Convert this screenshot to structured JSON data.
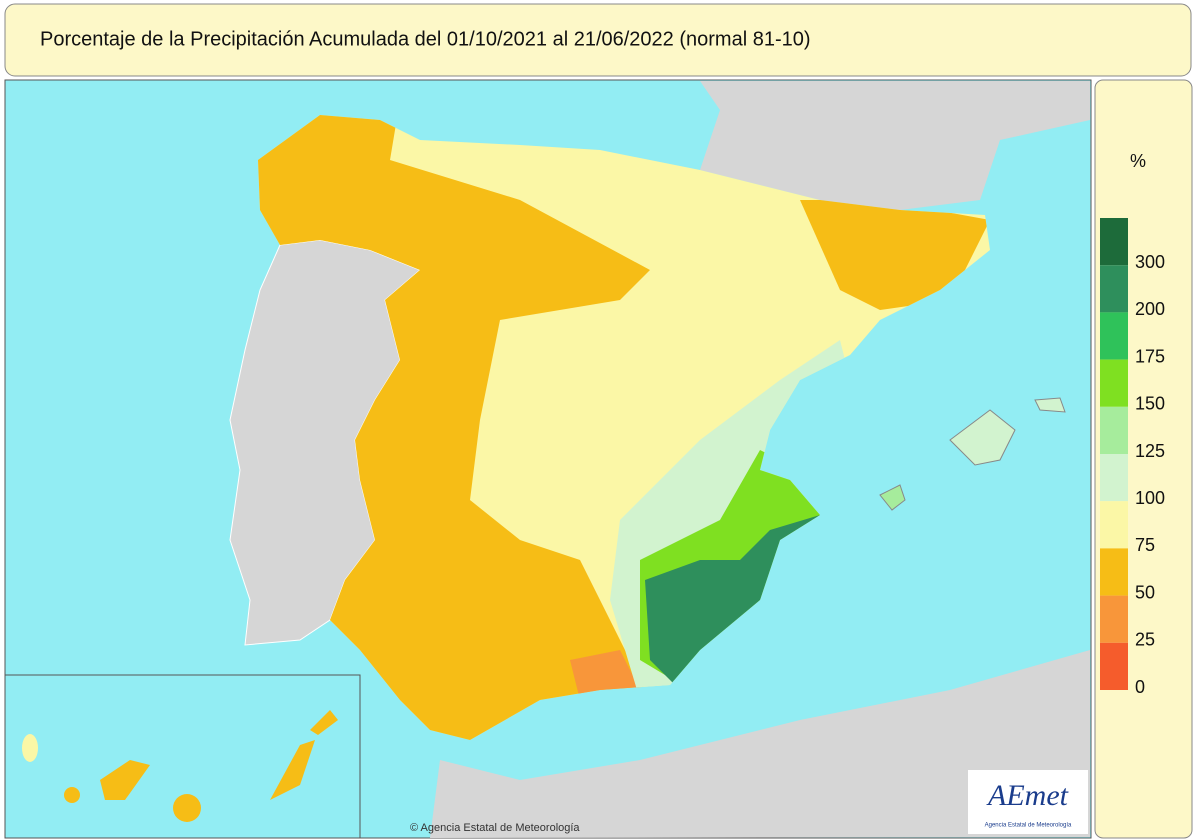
{
  "header": {
    "title": "Porcentaje de la Precipitación Acumulada del 01/10/2021 al 21/06/2022 (normal 81-10)"
  },
  "legend": {
    "unit": "%",
    "colors": [
      "#1d6b3a",
      "#2e8f5c",
      "#2fc25a",
      "#7fe021",
      "#a6ec9c",
      "#d2f3cf",
      "#fbf7a6",
      "#f6bd16",
      "#f8963a",
      "#f55c2c"
    ],
    "ticks": [
      300,
      200,
      175,
      150,
      125,
      100,
      75,
      50,
      25,
      0
    ]
  },
  "logo": {
    "name": "AEmet",
    "subtitle": "Agencia Estatal de Meteorología"
  },
  "credit": "© Agencia Estatal de Meteorología"
}
